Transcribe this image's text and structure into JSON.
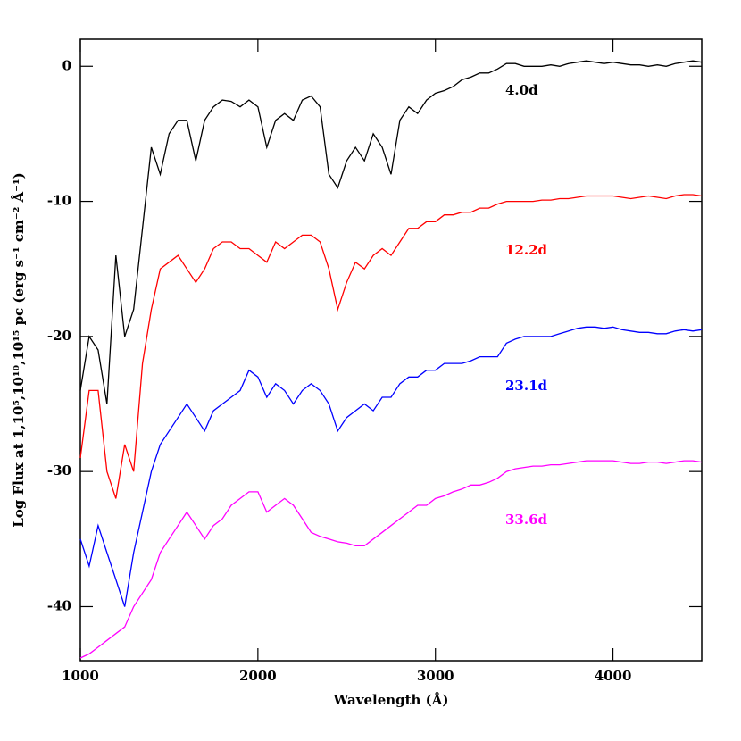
{
  "chart_data": {
    "type": "line",
    "xlabel": "Wavelength (Å)",
    "ylabel": "Log Flux at 1,10⁵,10¹⁰,10¹⁵ pc (erg s⁻¹ cm⁻² Å⁻¹)",
    "xlim": [
      1000,
      4500
    ],
    "ylim": [
      2,
      -44
    ],
    "xticks": [
      1000,
      2000,
      3000,
      4000
    ],
    "yticks": [
      0,
      -10,
      -20,
      -30,
      -40
    ],
    "x": [
      1000,
      1050,
      1100,
      1150,
      1200,
      1250,
      1300,
      1350,
      1400,
      1450,
      1500,
      1550,
      1600,
      1650,
      1700,
      1750,
      1800,
      1850,
      1900,
      1950,
      2000,
      2050,
      2100,
      2150,
      2200,
      2250,
      2300,
      2350,
      2400,
      2450,
      2500,
      2550,
      2600,
      2650,
      2700,
      2750,
      2800,
      2850,
      2900,
      2950,
      3000,
      3050,
      3100,
      3150,
      3200,
      3250,
      3300,
      3350,
      3400,
      3450,
      3500,
      3550,
      3600,
      3650,
      3700,
      3750,
      3800,
      3850,
      3900,
      3950,
      4000,
      4050,
      4100,
      4150,
      4200,
      4250,
      4300,
      4350,
      4400,
      4450,
      4500
    ],
    "series": [
      {
        "name": "4.0d",
        "color": "#000000",
        "values": [
          -24,
          -20,
          -21,
          -25,
          -14,
          -20,
          -18,
          -12,
          -6,
          -8,
          -5,
          -4,
          -4,
          -7,
          -4,
          -3,
          -2.5,
          -2.6,
          -3,
          -2.5,
          -3,
          -6,
          -4,
          -3.5,
          -4,
          -2.5,
          -2.2,
          -3,
          -8,
          -9,
          -7,
          -6,
          -7,
          -5,
          -6,
          -8,
          -4,
          -3,
          -3.5,
          -2.5,
          -2,
          -1.8,
          -1.5,
          -1,
          -0.8,
          -0.5,
          -0.5,
          -0.2,
          0.2,
          0.2,
          0,
          0,
          0,
          0.1,
          0,
          0.2,
          0.3,
          0.4,
          0.3,
          0.2,
          0.3,
          0.2,
          0.1,
          0.1,
          0,
          0.1,
          0,
          0.2,
          0.3,
          0.4,
          0.3
        ]
      },
      {
        "name": "12.2d",
        "color": "#ff0000",
        "values": [
          -29,
          -24,
          -24,
          -30,
          -32,
          -28,
          -30,
          -22,
          -18,
          -15,
          -14.5,
          -14,
          -15,
          -16,
          -15,
          -13.5,
          -13,
          -13,
          -13.5,
          -13.5,
          -14,
          -14.5,
          -13,
          -13.5,
          -13,
          -12.5,
          -12.5,
          -13,
          -15,
          -18,
          -16,
          -14.5,
          -15,
          -14,
          -13.5,
          -14,
          -13,
          -12,
          -12,
          -11.5,
          -11.5,
          -11,
          -11,
          -10.8,
          -10.8,
          -10.5,
          -10.5,
          -10.2,
          -10,
          -10,
          -10,
          -10,
          -9.9,
          -9.9,
          -9.8,
          -9.8,
          -9.7,
          -9.6,
          -9.6,
          -9.6,
          -9.6,
          -9.7,
          -9.8,
          -9.7,
          -9.6,
          -9.7,
          -9.8,
          -9.6,
          -9.5,
          -9.5,
          -9.6
        ]
      },
      {
        "name": "23.1d",
        "color": "#0000ff",
        "values": [
          -35,
          -37,
          -34,
          -36,
          -38,
          -40,
          -36,
          -33,
          -30,
          -28,
          -27,
          -26,
          -25,
          -26,
          -27,
          -25.5,
          -25,
          -24.5,
          -24,
          -22.5,
          -23,
          -24.5,
          -23.5,
          -24,
          -25,
          -24,
          -23.5,
          -24,
          -25,
          -27,
          -26,
          -25.5,
          -25,
          -25.5,
          -24.5,
          -24.5,
          -23.5,
          -23,
          -23,
          -22.5,
          -22.5,
          -22,
          -22,
          -22,
          -21.8,
          -21.5,
          -21.5,
          -21.5,
          -20.5,
          -20.2,
          -20,
          -20,
          -20,
          -20,
          -19.8,
          -19.6,
          -19.4,
          -19.3,
          -19.3,
          -19.4,
          -19.3,
          -19.5,
          -19.6,
          -19.7,
          -19.7,
          -19.8,
          -19.8,
          -19.6,
          -19.5,
          -19.6,
          -19.5
        ]
      },
      {
        "name": "33.6d",
        "color": "#ff00ff",
        "values": [
          -43.8,
          -43.5,
          -43,
          -42.5,
          -42,
          -41.5,
          -40,
          -39,
          -38,
          -36,
          -35,
          -34,
          -33,
          -34,
          -35,
          -34,
          -33.5,
          -32.5,
          -32,
          -31.5,
          -31.5,
          -33,
          -32.5,
          -32,
          -32.5,
          -33.5,
          -34.5,
          -34.8,
          -35,
          -35.2,
          -35.3,
          -35.5,
          -35.5,
          -35,
          -34.5,
          -34,
          -33.5,
          -33,
          -32.5,
          -32.5,
          -32,
          -31.8,
          -31.5,
          -31.3,
          -31,
          -31,
          -30.8,
          -30.5,
          -30,
          -29.8,
          -29.7,
          -29.6,
          -29.6,
          -29.5,
          -29.5,
          -29.4,
          -29.3,
          -29.2,
          -29.2,
          -29.2,
          -29.2,
          -29.3,
          -29.4,
          -29.4,
          -29.3,
          -29.3,
          -29.4,
          -29.3,
          -29.2,
          -29.2,
          -29.3
        ]
      }
    ]
  }
}
